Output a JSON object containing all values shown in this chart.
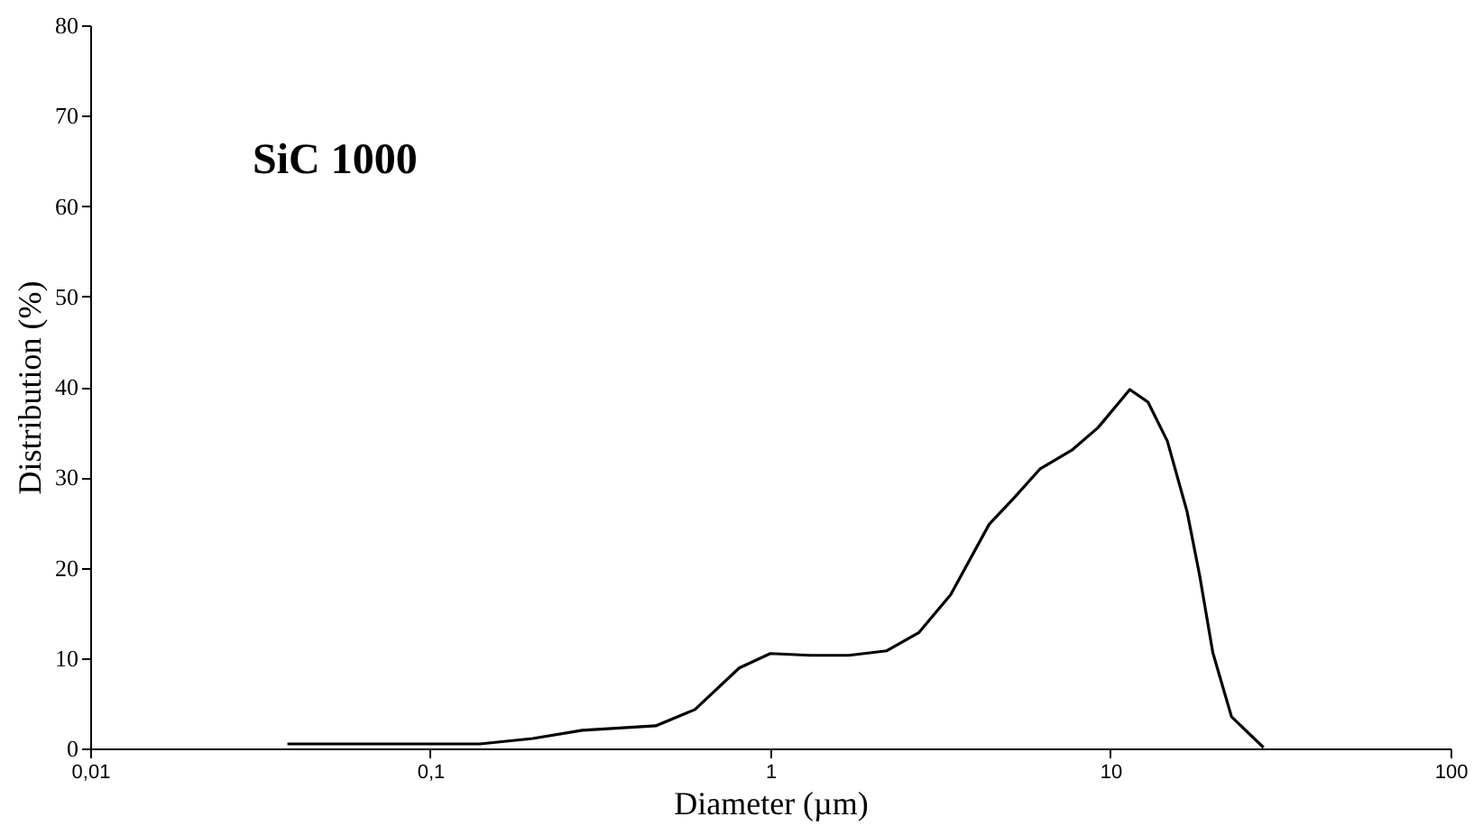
{
  "chart_data": {
    "type": "line",
    "xlabel": "Diameter (µm)",
    "ylabel": "Distribution (%)",
    "annotations": [
      "SiC 1000"
    ],
    "log": "x",
    "xlim": [
      0.01,
      100
    ],
    "ylim": [
      0,
      80
    ],
    "xticks": [
      {
        "value": 0.01,
        "label": "0,01"
      },
      {
        "value": 0.1,
        "label": "0,1"
      },
      1,
      10,
      100
    ],
    "yticks": [
      0,
      10,
      20,
      30,
      40,
      50,
      60,
      70,
      80
    ],
    "grid": false,
    "marker": "none",
    "line_style": "solid",
    "series": [
      {
        "color": "#000000",
        "x": [
          0.038,
          0.14,
          0.2,
          0.28,
          0.46,
          0.6,
          0.81,
          1.0,
          1.31,
          1.7,
          2.2,
          2.73,
          3.39,
          4.4,
          5.2,
          6.2,
          7.7,
          9.2,
          11.4,
          12.9,
          14.7,
          16.8,
          18.3,
          20,
          22.7,
          28.2
        ],
        "values": [
          0.5,
          0.5,
          1.1,
          2,
          2.5,
          4.3,
          8.9,
          10.5,
          10.3,
          10.3,
          10.8,
          12.8,
          17,
          24.8,
          27.7,
          30.9,
          33,
          35.5,
          39.7,
          38.3,
          34,
          26.2,
          19.1,
          10.6,
          3.5,
          0.1
        ]
      }
    ]
  }
}
